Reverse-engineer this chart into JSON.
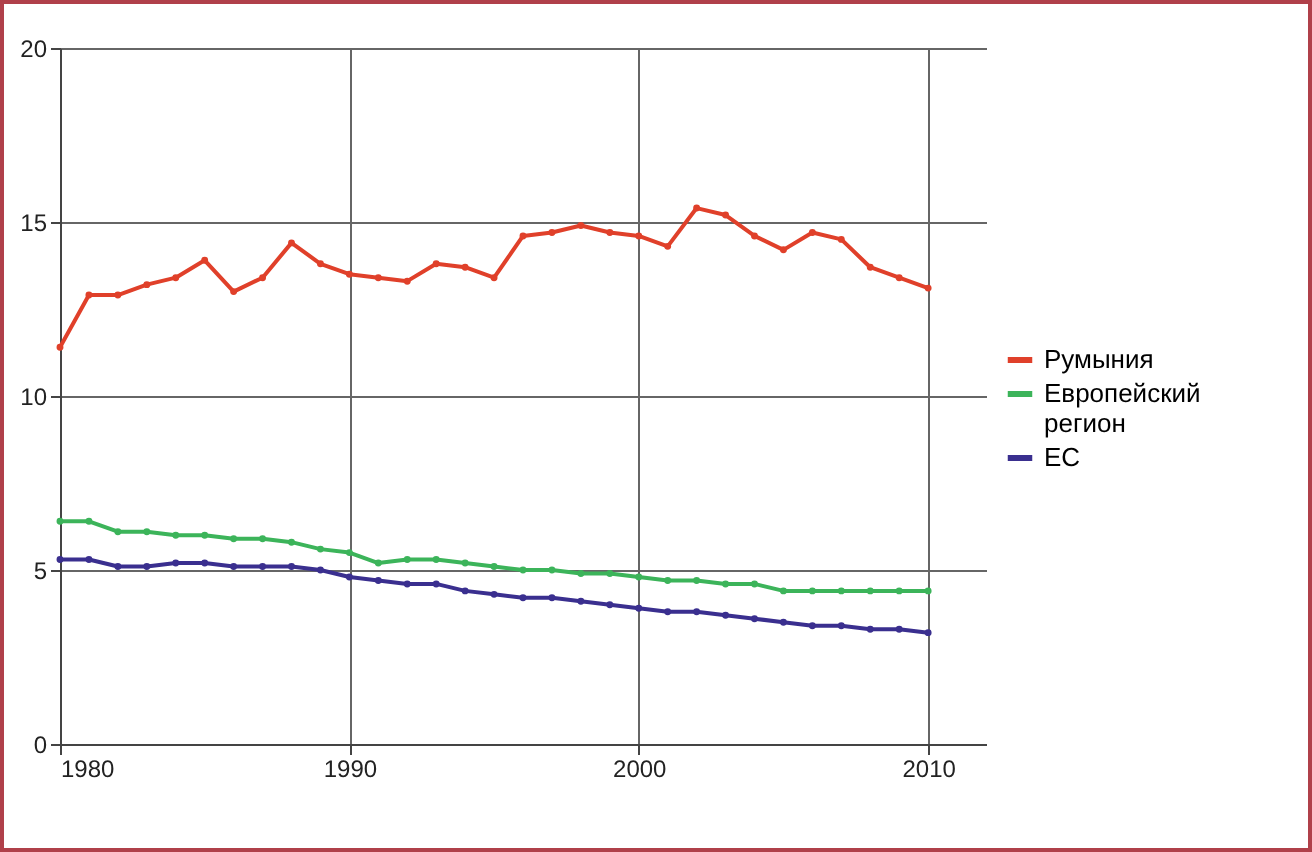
{
  "chart_data": {
    "type": "line",
    "x": [
      1980,
      1981,
      1982,
      1983,
      1984,
      1985,
      1986,
      1987,
      1988,
      1989,
      1990,
      1991,
      1992,
      1993,
      1994,
      1995,
      1996,
      1997,
      1998,
      1999,
      2000,
      2001,
      2002,
      2003,
      2004,
      2005,
      2006,
      2007,
      2008,
      2009,
      2010
    ],
    "series": [
      {
        "name": "Румыния",
        "color": "#e0402a",
        "values": [
          11.4,
          12.9,
          12.9,
          13.2,
          13.4,
          13.9,
          13.0,
          13.4,
          14.4,
          13.8,
          13.5,
          13.4,
          13.3,
          13.8,
          13.7,
          13.4,
          14.6,
          14.7,
          14.9,
          14.7,
          14.6,
          14.3,
          15.4,
          15.2,
          14.6,
          14.2,
          14.7,
          14.5,
          13.7,
          13.4,
          13.1
        ]
      },
      {
        "name": "Европейский регион",
        "color": "#3cb45a",
        "values": [
          6.4,
          6.4,
          6.1,
          6.1,
          6.0,
          6.0,
          5.9,
          5.9,
          5.8,
          5.6,
          5.5,
          5.2,
          5.3,
          5.3,
          5.2,
          5.1,
          5.0,
          5.0,
          4.9,
          4.9,
          4.8,
          4.7,
          4.7,
          4.6,
          4.6,
          4.4,
          4.4,
          4.4,
          4.4,
          4.4,
          4.4
        ]
      },
      {
        "name": "ЕС",
        "color": "#3a2f8f",
        "values": [
          5.3,
          5.3,
          5.1,
          5.1,
          5.2,
          5.2,
          5.1,
          5.1,
          5.1,
          5.0,
          4.8,
          4.7,
          4.6,
          4.6,
          4.4,
          4.3,
          4.2,
          4.2,
          4.1,
          4.0,
          3.9,
          3.8,
          3.8,
          3.7,
          3.6,
          3.5,
          3.4,
          3.4,
          3.3,
          3.3,
          3.2
        ]
      }
    ],
    "xlim": [
      1980,
      2012
    ],
    "xticks": [
      1980,
      1990,
      2000,
      2010
    ],
    "ylim": [
      0,
      20
    ],
    "yticks": [
      0,
      5,
      10,
      15,
      20
    ],
    "grid": true,
    "legend": "right",
    "marker": "circle",
    "line_style": "solid"
  }
}
